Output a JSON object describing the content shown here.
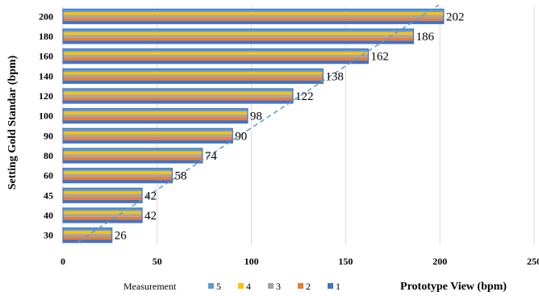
{
  "chart_data": {
    "type": "bar",
    "orientation": "horizontal",
    "categories": [
      "30",
      "40",
      "45",
      "60",
      "80",
      "90",
      "100",
      "120",
      "140",
      "160",
      "180",
      "200"
    ],
    "series": [
      {
        "name": "5",
        "values": [
          26,
          42,
          42,
          58,
          74,
          90,
          98,
          122,
          138,
          162,
          186,
          202
        ]
      },
      {
        "name": "4",
        "values": [
          26,
          42,
          42,
          58,
          74,
          90,
          98,
          122,
          138,
          162,
          186,
          202
        ]
      },
      {
        "name": "3",
        "values": [
          26,
          42,
          42,
          58,
          74,
          90,
          98,
          122,
          138,
          162,
          186,
          202
        ]
      },
      {
        "name": "2",
        "values": [
          26,
          42,
          42,
          58,
          74,
          90,
          98,
          122,
          138,
          162,
          186,
          202
        ]
      },
      {
        "name": "1",
        "values": [
          26,
          42,
          42,
          58,
          74,
          90,
          98,
          122,
          138,
          162,
          186,
          202
        ]
      }
    ],
    "data_labels": [
      "26",
      "42",
      "42",
      "58",
      "74",
      "90",
      "98",
      "122",
      "138",
      "162",
      "186",
      "202"
    ],
    "x_ticks": [
      "0",
      "50",
      "100",
      "150",
      "200",
      "250"
    ],
    "xlim": [
      0,
      250
    ],
    "xlabel": "Prototype View (bpm)",
    "ylabel": "Setting Gold Standar (bpm)",
    "legend_title": "Measurement",
    "legend_position": "bottom",
    "trendline": {
      "style": "dashed",
      "from": [
        8,
        "30"
      ],
      "to": [
        202,
        "200"
      ]
    },
    "grid": "vertical",
    "colors": {
      "5": "#5b9bd5",
      "4": "#ffc000",
      "3": "#a5a5a5",
      "2": "#ed7d31",
      "1": "#4472c4",
      "trendline": "#5b9bd5",
      "grid": "#d9d9d9"
    }
  }
}
